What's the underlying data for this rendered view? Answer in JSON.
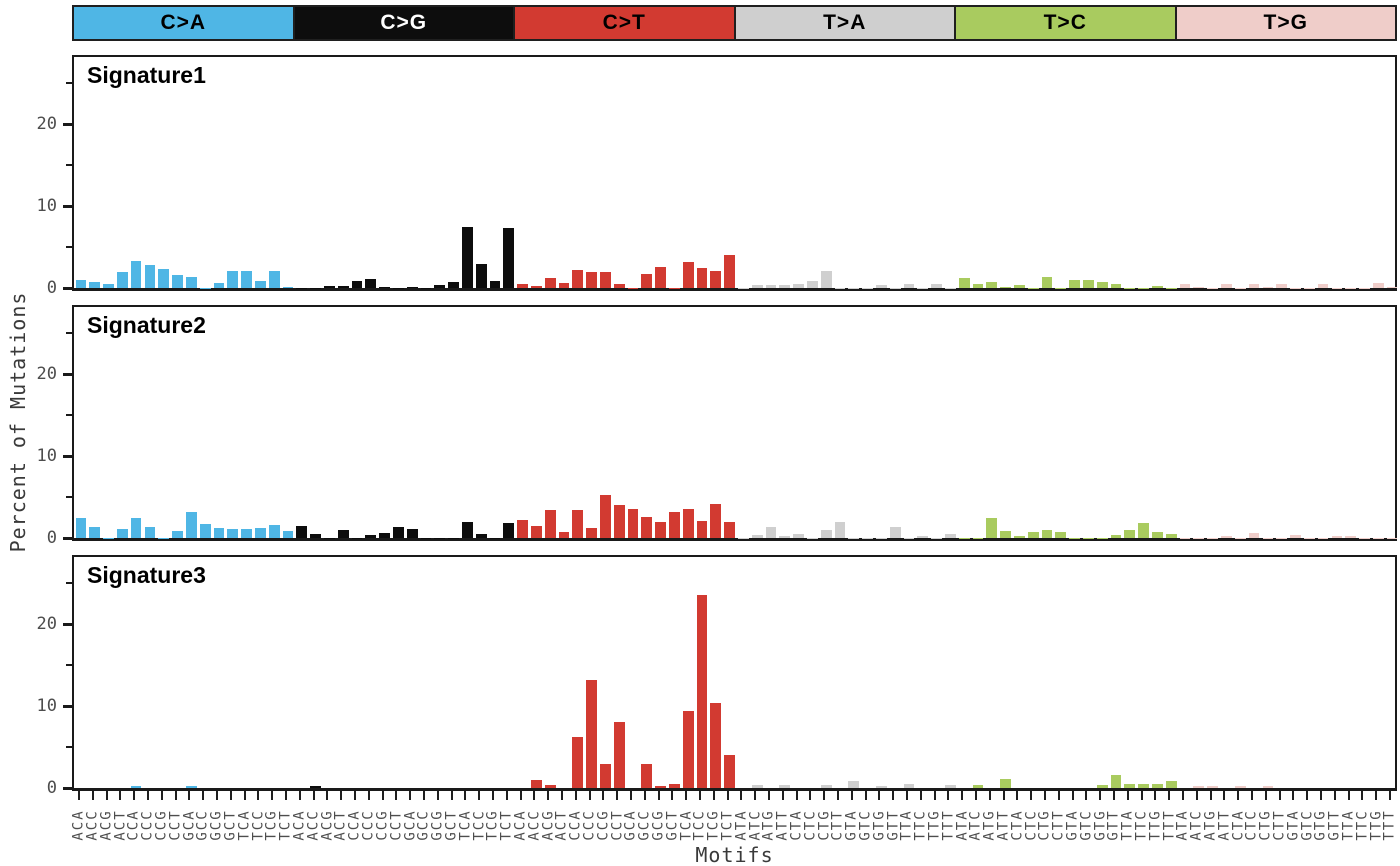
{
  "header": {
    "categories": [
      {
        "label": "C>A",
        "color": "#4FB6E5",
        "text_color": "#000000"
      },
      {
        "label": "C>G",
        "color": "#0D0D0D",
        "text_color": "#FFFFFF"
      },
      {
        "label": "C>T",
        "color": "#D23A31",
        "text_color": "#000000"
      },
      {
        "label": "T>A",
        "color": "#CFCFCF",
        "text_color": "#000000"
      },
      {
        "label": "T>C",
        "color": "#A9CB5F",
        "text_color": "#000000"
      },
      {
        "label": "T>G",
        "color": "#EFCDC9",
        "text_color": "#000000"
      }
    ]
  },
  "chart_data": {
    "type": "bar",
    "title": "",
    "ylabel": "Percent of Mutations",
    "xlabel": "Motifs",
    "ylim": [
      0,
      28
    ],
    "yticks_major": [
      0,
      10,
      20
    ],
    "yticks_minor": [
      5,
      15,
      25
    ],
    "grid": false,
    "legend_position": "top-strip",
    "mutation_types": [
      "C>A",
      "C>G",
      "C>T",
      "T>A",
      "T>C",
      "T>G"
    ],
    "contexts_C": [
      "ACA",
      "ACC",
      "ACG",
      "ACT",
      "CCA",
      "CCC",
      "CCG",
      "CCT",
      "GCA",
      "GCC",
      "GCG",
      "GCT",
      "TCA",
      "TCC",
      "TCG",
      "TCT"
    ],
    "contexts_T": [
      "ATA",
      "ATC",
      "ATG",
      "ATT",
      "CTA",
      "CTC",
      "CTG",
      "CTT",
      "GTA",
      "GTC",
      "GTG",
      "GTT",
      "TTA",
      "TTC",
      "TTG",
      "TTT"
    ],
    "panels": [
      {
        "title": "Signature1",
        "values": {
          "C>A": [
            1.0,
            0.7,
            0.55,
            2.0,
            3.3,
            2.85,
            2.3,
            1.65,
            1.4,
            0.05,
            0.6,
            2.1,
            2.1,
            0.8,
            2.1,
            0.1
          ],
          "C>G": [
            0.05,
            0.05,
            0.2,
            0.2,
            0.8,
            1.05,
            0.1,
            0.05,
            0.15,
            0.05,
            0.4,
            0.7,
            7.4,
            2.9,
            0.9,
            7.3
          ],
          "C>T": [
            0.5,
            0.3,
            1.2,
            0.6,
            2.2,
            2.0,
            2.0,
            0.5,
            0.05,
            1.7,
            2.6,
            0.05,
            3.2,
            2.4,
            2.1,
            4.0
          ],
          "T>A": [
            0.05,
            0.35,
            0.35,
            0.4,
            0.55,
            0.8,
            2.1,
            0.05,
            0.05,
            0.05,
            0.4,
            0.05,
            0.5,
            0.05,
            0.5,
            0.05
          ],
          "T>C": [
            1.2,
            0.5,
            0.7,
            0.15,
            0.4,
            0.05,
            1.35,
            0.05,
            1.0,
            1.0,
            0.7,
            0.5,
            0.05,
            0.05,
            0.3,
            0.05
          ],
          "T>G": [
            0.5,
            0.1,
            0.05,
            0.5,
            0.05,
            0.55,
            0.1,
            0.5,
            0.05,
            0.05,
            0.5,
            0.05,
            0.05,
            0.05,
            0.6,
            0.15
          ]
        }
      },
      {
        "title": "Signature2",
        "values": {
          "C>A": [
            2.4,
            1.3,
            0.05,
            1.1,
            2.4,
            1.3,
            0.05,
            0.9,
            3.2,
            1.7,
            1.2,
            1.1,
            1.1,
            1.2,
            1.55,
            0.9
          ],
          "C>G": [
            1.5,
            0.5,
            0.05,
            1.0,
            0.05,
            0.4,
            0.6,
            1.3,
            1.15,
            0.05,
            0.05,
            0.05,
            1.9,
            0.5,
            0.05,
            1.8
          ],
          "C>T": [
            2.2,
            1.5,
            3.4,
            0.7,
            3.4,
            1.2,
            5.2,
            4.0,
            3.5,
            2.6,
            1.95,
            3.2,
            3.55,
            2.1,
            4.2,
            2.0
          ],
          "T>A": [
            0.05,
            0.4,
            1.3,
            0.3,
            0.55,
            0.05,
            1.0,
            1.9,
            0.05,
            0.05,
            0.05,
            1.4,
            0.05,
            0.25,
            0.05,
            0.5
          ],
          "T>C": [
            0.05,
            0.05,
            2.5,
            0.8,
            0.3,
            0.7,
            1.0,
            0.7,
            0.05,
            0.05,
            0.05,
            0.4,
            1.0,
            1.8,
            0.7,
            0.5
          ],
          "T>G": [
            0.05,
            0.05,
            0.05,
            0.3,
            0.05,
            0.6,
            0.05,
            0.05,
            0.4,
            0.05,
            0.05,
            0.2,
            0.2,
            0.05,
            0.05,
            0.05
          ]
        }
      },
      {
        "title": "Signature3",
        "values": {
          "C>A": [
            0,
            0,
            0,
            0,
            0.3,
            0,
            0,
            0,
            0.3,
            0,
            0,
            0,
            0,
            0,
            0,
            0
          ],
          "C>G": [
            0,
            0.3,
            0,
            0,
            0,
            0,
            0,
            0,
            0,
            0,
            0,
            0,
            0,
            0,
            0,
            0
          ],
          "C>T": [
            0,
            1.0,
            0.4,
            0,
            6.2,
            13.2,
            2.9,
            8.0,
            0,
            2.9,
            0.3,
            0.5,
            9.4,
            23.5,
            10.4,
            4.0
          ],
          "T>A": [
            0,
            0.4,
            0,
            0.4,
            0,
            0,
            0.4,
            0,
            0.8,
            0,
            0.3,
            0,
            0.5,
            0,
            0,
            0.4
          ],
          "T>C": [
            0,
            0.4,
            0,
            1.1,
            0,
            0,
            0,
            0,
            0,
            0,
            0.35,
            1.6,
            0.5,
            0.5,
            0.5,
            0.8
          ],
          "T>G": [
            0,
            0.25,
            0.25,
            0,
            0.25,
            0,
            0.25,
            0,
            0,
            0,
            0,
            0,
            0,
            0,
            0,
            0
          ]
        }
      }
    ]
  }
}
